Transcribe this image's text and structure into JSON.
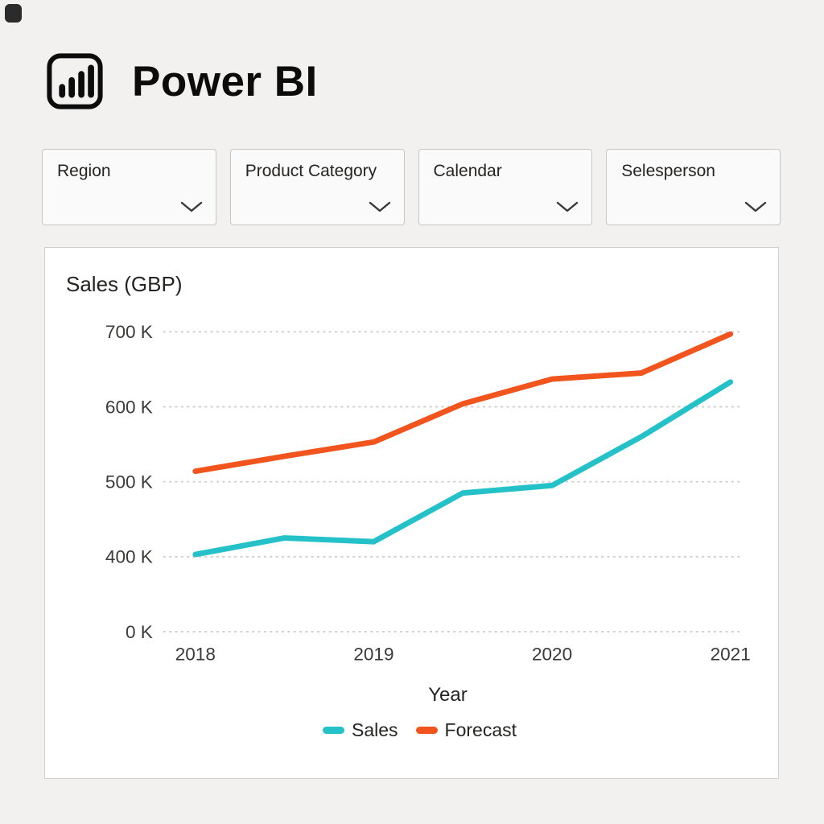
{
  "app": {
    "brand": "Power BI"
  },
  "icons": {
    "brand_logo": "powerbi-bar-chart",
    "filter_chevron": "chevron-down"
  },
  "filters": [
    {
      "label": "Region"
    },
    {
      "label": "Product Category"
    },
    {
      "label": "Calendar"
    },
    {
      "label": "Selesperson"
    }
  ],
  "chart_data": {
    "type": "line",
    "title": "Sales (GBP)",
    "xlabel": "Year",
    "ylabel": "Sales (GBP, thousands)",
    "grid": "horizontal-dotted",
    "legend_position": "bottom",
    "x_range": [
      2018,
      2021
    ],
    "x_ticks": [
      {
        "label": "2018",
        "value": 2018
      },
      {
        "label": "2019",
        "value": 2019
      },
      {
        "label": "2020",
        "value": 2020
      },
      {
        "label": "2021",
        "value": 2021
      }
    ],
    "y_ticks": [
      {
        "label": "700 K",
        "value": 700
      },
      {
        "label": "600 K",
        "value": 600
      },
      {
        "label": "500 K",
        "value": 500
      },
      {
        "label": "400 K",
        "value": 400
      },
      {
        "label": "0 K",
        "value": 0
      }
    ],
    "y_axis_note": "axis break between 0K and 400K, ticks equally spaced",
    "x": [
      2018,
      2018.5,
      2019,
      2019.5,
      2020,
      2020.5,
      2021
    ],
    "series": [
      {
        "name": "Sales",
        "color": "#25C1C9",
        "values": [
          403,
          425,
          420,
          485,
          495,
          560,
          633
        ]
      },
      {
        "name": "Forecast",
        "color": "#F2541E",
        "values": [
          514,
          534,
          553,
          604,
          637,
          645,
          697
        ]
      }
    ]
  }
}
